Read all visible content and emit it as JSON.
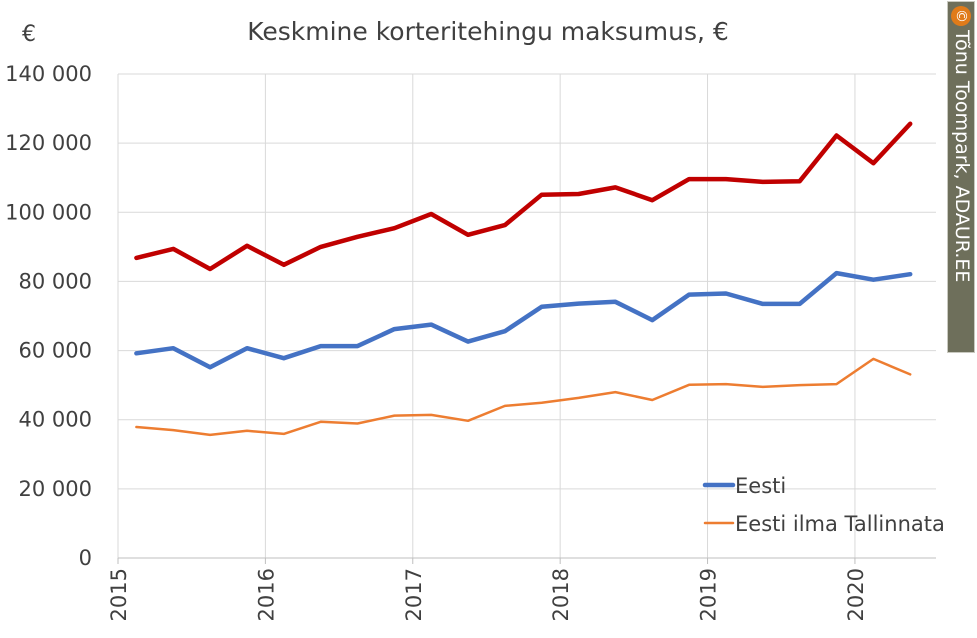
{
  "chart_data": {
    "type": "line",
    "title": "Keskmine korteritehingu maksumus, €",
    "unit_label": "€",
    "ylabel": "",
    "xlabel": "",
    "ylim": [
      0,
      140000
    ],
    "y_ticks": [
      "0",
      "20 000",
      "40 000",
      "60 000",
      "80 000",
      "100 000",
      "120 000",
      "140 000"
    ],
    "xlim": [
      2015.0,
      2020.55
    ],
    "x_ticks": [
      "2015",
      "2016",
      "2017",
      "2018",
      "2019",
      "2020"
    ],
    "x": [
      2015.125,
      2015.375,
      2015.625,
      2015.875,
      2016.125,
      2016.375,
      2016.625,
      2016.875,
      2017.125,
      2017.375,
      2017.625,
      2017.875,
      2018.125,
      2018.375,
      2018.625,
      2018.875,
      2019.125,
      2019.375,
      2019.625,
      2019.875,
      2020.125,
      2020.375
    ],
    "grid": true,
    "legend_position": "bottom-right",
    "series": [
      {
        "name": "",
        "color": "#c00000",
        "values": [
          86800,
          89400,
          83600,
          90300,
          84800,
          90000,
          92900,
          95400,
          99500,
          93500,
          96300,
          105100,
          105300,
          107200,
          103500,
          109600,
          109600,
          108800,
          109000,
          122200,
          114200,
          125600
        ]
      },
      {
        "name": "Eesti",
        "color": "#4472c4",
        "values": [
          59200,
          60700,
          55200,
          60700,
          57800,
          61300,
          61300,
          66200,
          67500,
          62600,
          65600,
          72700,
          73600,
          74100,
          68800,
          76200,
          76500,
          73500,
          73500,
          82400,
          80500,
          82100
        ]
      },
      {
        "name": "Eesti ilma Tallinnata",
        "color": "#ed7d31",
        "values": [
          37900,
          37000,
          35600,
          36800,
          35900,
          39400,
          38900,
          41200,
          41400,
          39700,
          44000,
          44900,
          46300,
          48000,
          45700,
          50100,
          50300,
          49500,
          50000,
          50300,
          57600,
          53100
        ]
      }
    ],
    "credit": "Tõnu Toompark, ADAUR.EE",
    "credit_symbol": "©"
  }
}
